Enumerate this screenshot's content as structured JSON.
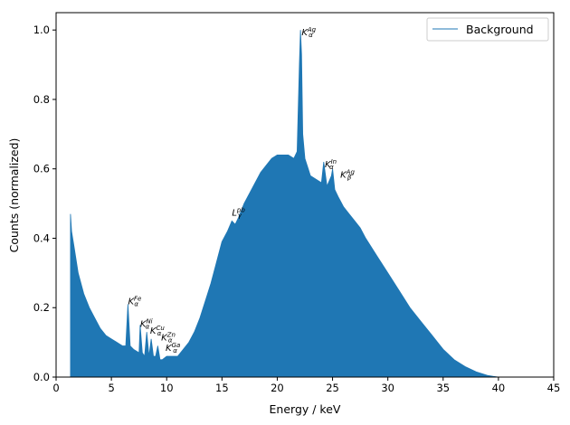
{
  "chart_data": {
    "type": "area",
    "title": "",
    "xlabel": "Energy / keV",
    "ylabel": "Counts (normalized)",
    "xlim": [
      0,
      45
    ],
    "ylim": [
      0,
      1.05
    ],
    "x_ticks": [
      0,
      5,
      10,
      15,
      20,
      25,
      30,
      35,
      40,
      45
    ],
    "x_tick_labels": [
      "0",
      "5",
      "10",
      "15",
      "20",
      "25",
      "30",
      "35",
      "40",
      "45"
    ],
    "y_ticks": [
      0.0,
      0.2,
      0.4,
      0.6,
      0.8,
      1.0
    ],
    "y_tick_labels": [
      "0.0",
      "0.2",
      "0.4",
      "0.6",
      "0.8",
      "1.0"
    ],
    "grid": false,
    "legend_position": "top-right",
    "series": [
      {
        "name": "Background",
        "color": "#1f77b4",
        "x": [
          1.3,
          1.4,
          1.6,
          2.0,
          2.5,
          3.0,
          3.5,
          4.0,
          4.5,
          5.0,
          5.5,
          6.0,
          6.3,
          6.5,
          6.7,
          7.0,
          7.5,
          7.6,
          7.8,
          8.0,
          8.2,
          8.4,
          8.6,
          8.8,
          9.0,
          9.2,
          9.4,
          9.6,
          10.0,
          10.5,
          11.0,
          11.5,
          12.0,
          12.5,
          13.0,
          13.5,
          14.0,
          14.5,
          15.0,
          15.5,
          15.9,
          16.2,
          16.5,
          17.0,
          17.5,
          18.0,
          18.5,
          19.0,
          19.5,
          20.0,
          20.5,
          21.0,
          21.5,
          21.8,
          22.0,
          22.1,
          22.2,
          22.3,
          22.5,
          22.8,
          23.0,
          23.5,
          24.0,
          24.2,
          24.5,
          24.9,
          25.0,
          25.2,
          25.5,
          26.0,
          26.5,
          27.0,
          27.5,
          28.0,
          29.0,
          30.0,
          31.0,
          32.0,
          33.0,
          34.0,
          35.0,
          36.0,
          37.0,
          38.0,
          39.0,
          39.5,
          40.0,
          41.0,
          42.0,
          43.0,
          44.0,
          45.0
        ],
        "y": [
          0.47,
          0.42,
          0.38,
          0.3,
          0.24,
          0.2,
          0.17,
          0.14,
          0.12,
          0.11,
          0.1,
          0.09,
          0.09,
          0.21,
          0.09,
          0.08,
          0.07,
          0.15,
          0.07,
          0.06,
          0.13,
          0.06,
          0.11,
          0.06,
          0.06,
          0.09,
          0.05,
          0.05,
          0.06,
          0.06,
          0.06,
          0.08,
          0.1,
          0.13,
          0.17,
          0.22,
          0.27,
          0.33,
          0.39,
          0.42,
          0.45,
          0.44,
          0.46,
          0.5,
          0.53,
          0.56,
          0.59,
          0.61,
          0.63,
          0.64,
          0.64,
          0.64,
          0.63,
          0.65,
          0.9,
          1.0,
          0.93,
          0.7,
          0.63,
          0.6,
          0.58,
          0.57,
          0.56,
          0.62,
          0.55,
          0.58,
          0.6,
          0.54,
          0.52,
          0.49,
          0.47,
          0.45,
          0.43,
          0.4,
          0.35,
          0.3,
          0.25,
          0.2,
          0.16,
          0.12,
          0.08,
          0.05,
          0.03,
          0.015,
          0.005,
          0.002,
          0.0,
          0.0,
          0.0,
          0.0,
          0.0,
          0.0
        ]
      }
    ],
    "annotations": [
      {
        "base": "K",
        "sub": "α",
        "sup": "Ag",
        "x": 22.2,
        "y": 0.985
      },
      {
        "base": "K",
        "sub": "α",
        "sup": "In",
        "x": 24.3,
        "y": 0.605
      },
      {
        "base": "K",
        "sub": "β",
        "sup": "Ag",
        "x": 25.7,
        "y": 0.575
      },
      {
        "base": "L",
        "sub": "γ",
        "sup": "pb",
        "x": 15.9,
        "y": 0.465
      },
      {
        "base": "K",
        "sub": "α",
        "sup": "Fe",
        "x": 6.5,
        "y": 0.21
      },
      {
        "base": "K",
        "sub": "α",
        "sup": "Ni",
        "x": 7.6,
        "y": 0.145
      },
      {
        "base": "K",
        "sub": "α",
        "sup": "Cu",
        "x": 8.5,
        "y": 0.125
      },
      {
        "base": "K",
        "sub": "α",
        "sup": "Zn",
        "x": 9.5,
        "y": 0.105
      },
      {
        "base": "K",
        "sub": "α",
        "sup": "Ga",
        "x": 9.9,
        "y": 0.075
      }
    ]
  }
}
